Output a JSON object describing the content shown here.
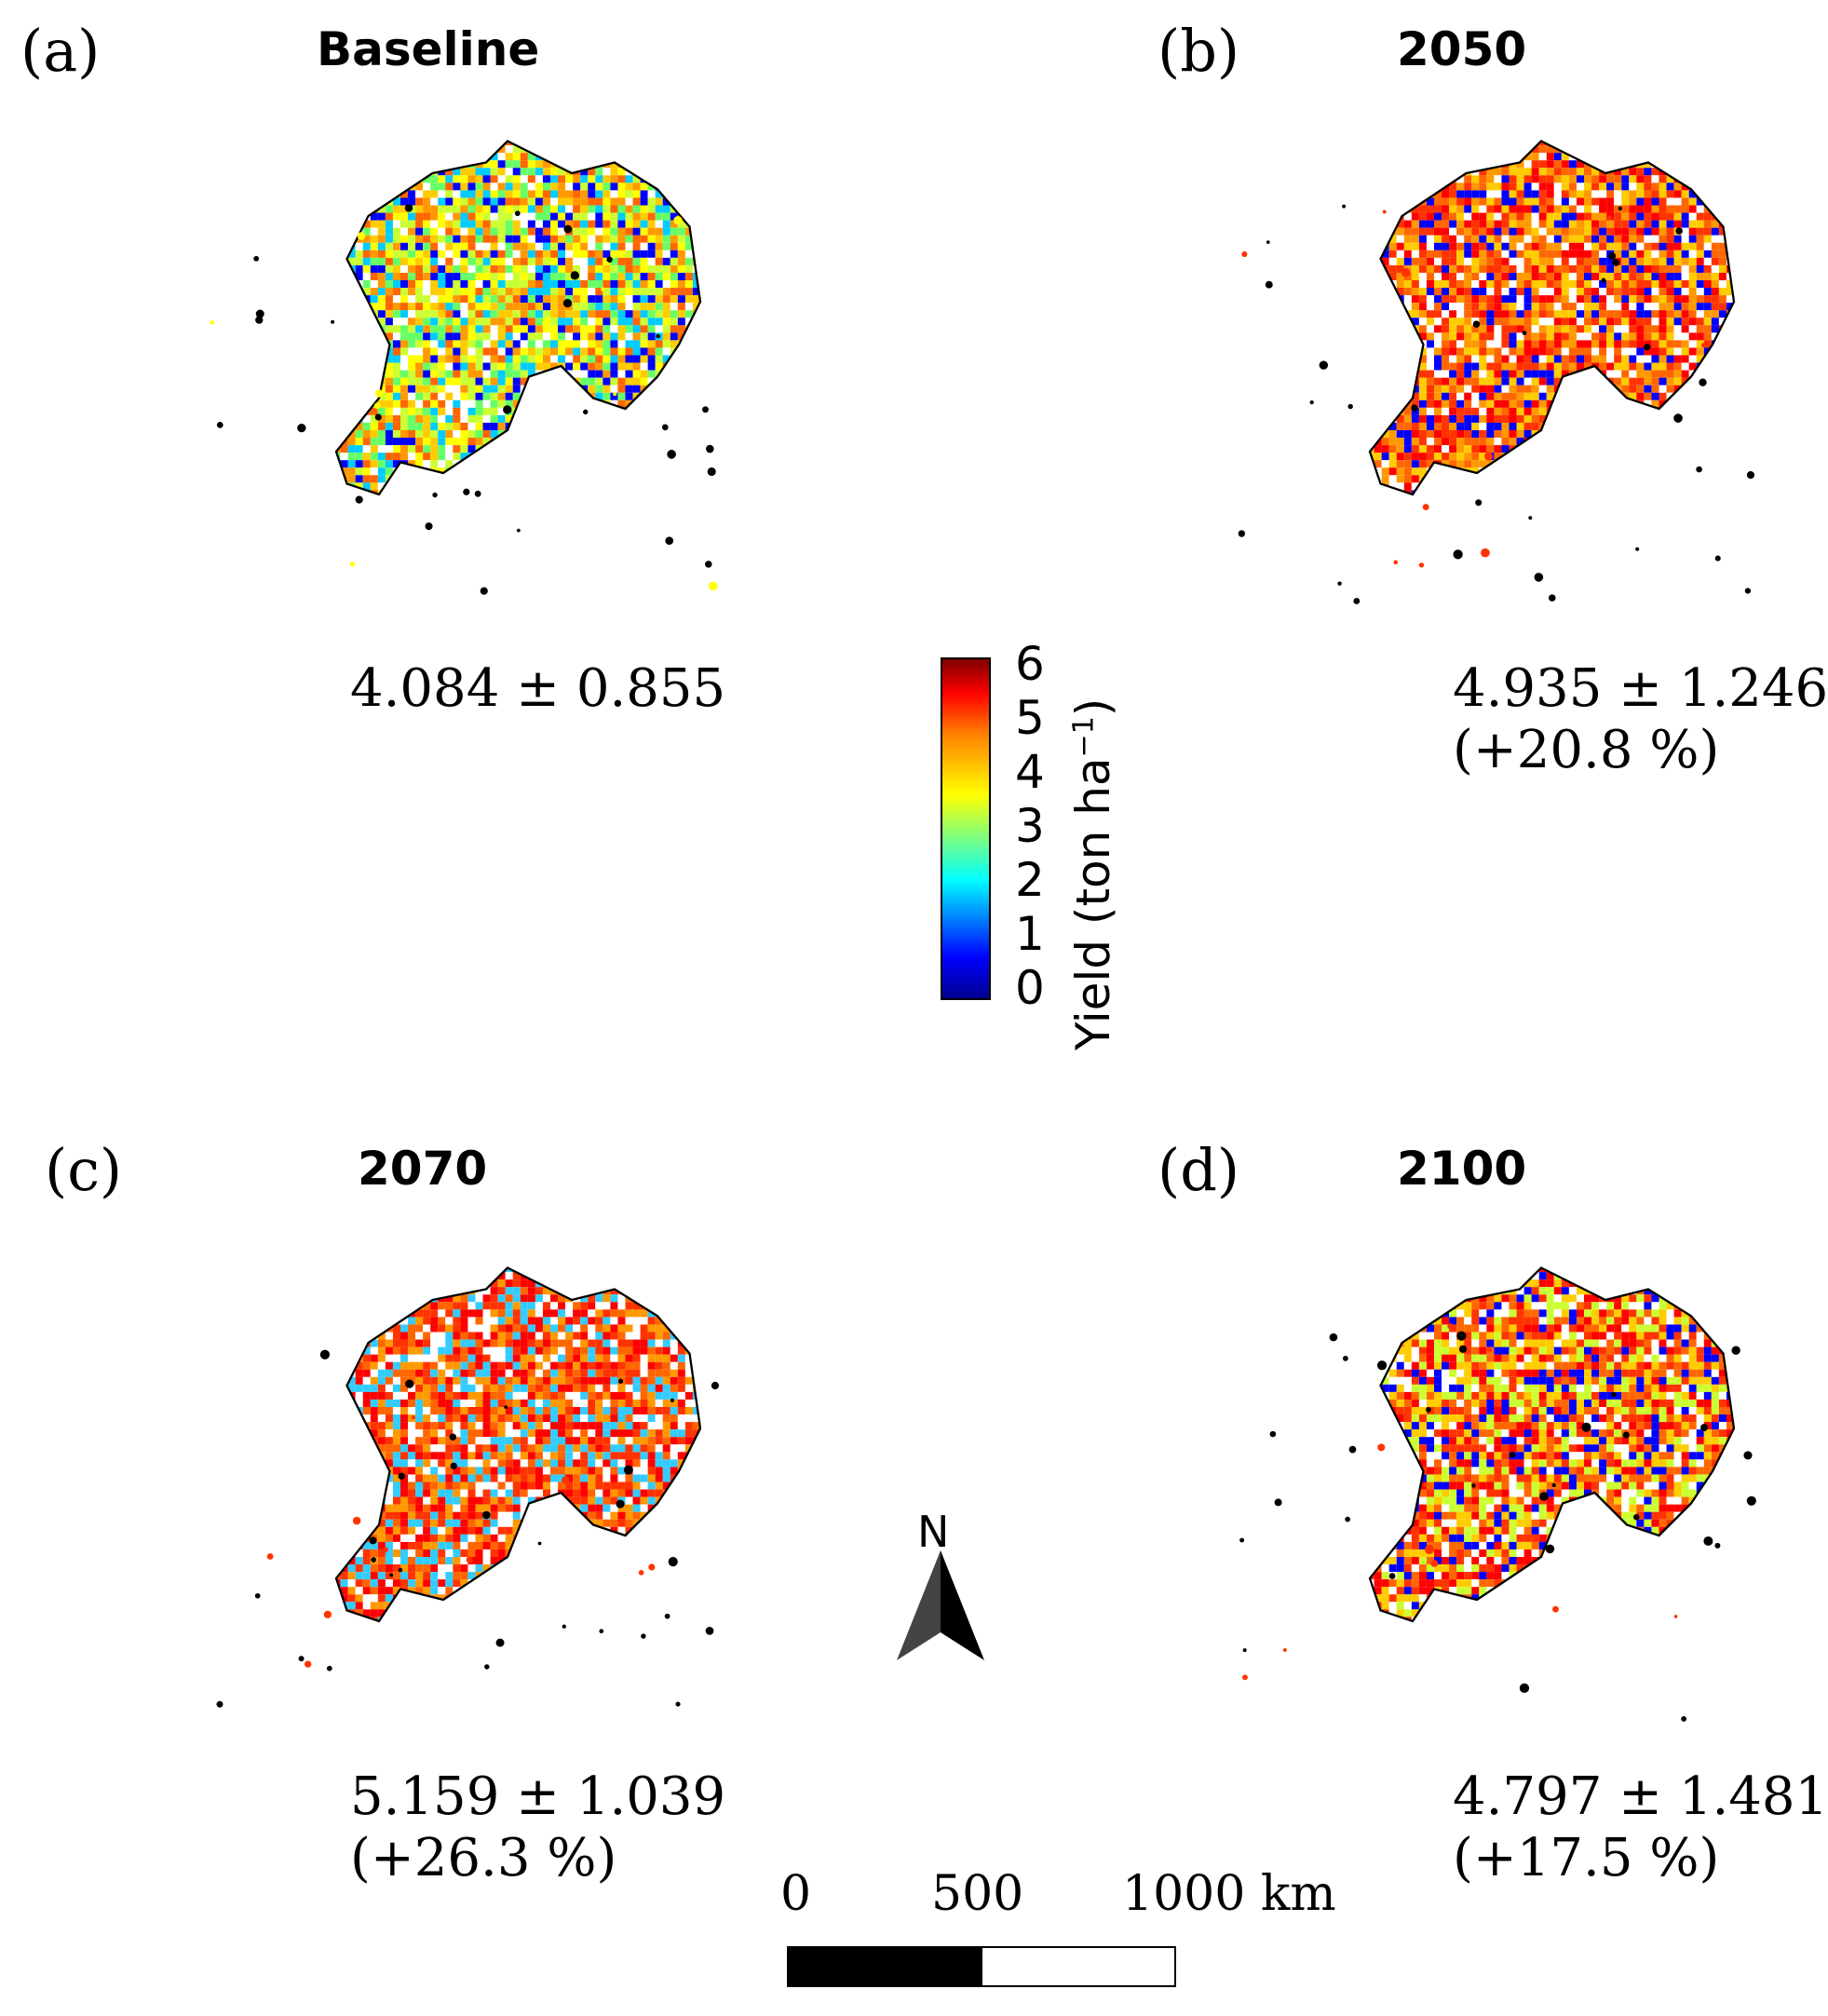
{
  "panels": [
    {
      "label": "(a)",
      "title": "Baseline",
      "stat": "4.084 ± 0.855",
      "change": ""
    },
    {
      "label": "(b)",
      "title": "2050",
      "stat": "4.935 ± 1.246",
      "change": "(+20.8 %)"
    },
    {
      "label": "(c)",
      "title": "2070",
      "stat": "5.159 ± 1.039",
      "change": "(+26.3 %)"
    },
    {
      "label": "(d)",
      "title": "2100",
      "stat": "4.797 ± 1.481",
      "change": "(+17.5 %)"
    }
  ],
  "colorbar": {
    "ticks": [
      "6",
      "5",
      "4",
      "3",
      "2",
      "1",
      "0"
    ],
    "label_main": "Yield (ton ha",
    "label_sup": "−1",
    "label_end": ")"
  },
  "north_arrow": {
    "letter": "N"
  },
  "scale_bar": {
    "labels": [
      "0",
      "500",
      "1000 km"
    ]
  },
  "colors": {
    "red": "#ff1a00",
    "orange": "#ff8c00",
    "yellow": "#ffff00",
    "green": "#66ff33",
    "blue": "#0000ff"
  }
}
